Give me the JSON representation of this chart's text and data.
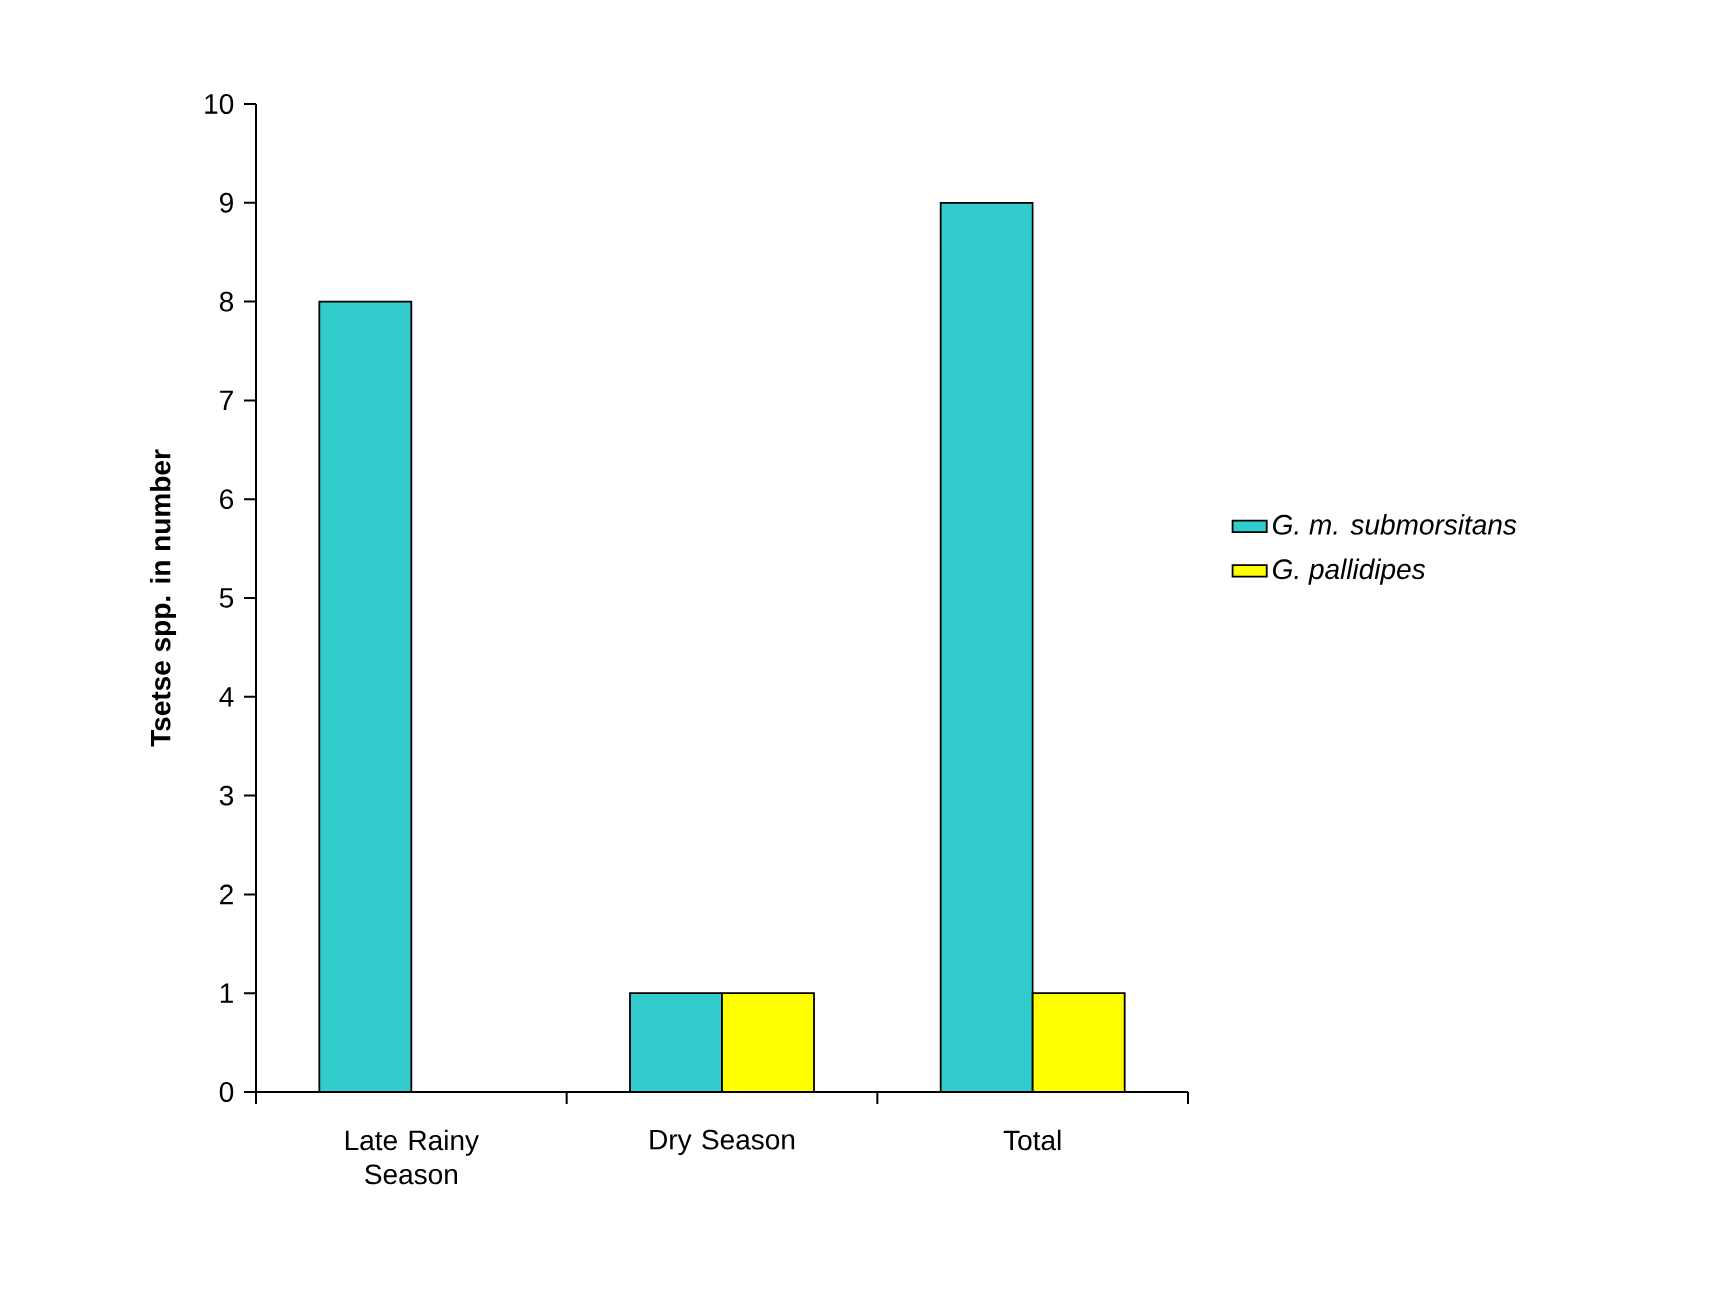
{
  "chart_data": {
    "type": "bar",
    "ylabel": "Tsetse spp. in number",
    "categories": [
      "Late Rainy Season",
      "Dry Season",
      "Total"
    ],
    "series": [
      {
        "name": "G. m. submorsitans",
        "color": "#33cccc",
        "values": [
          8,
          1,
          9
        ]
      },
      {
        "name": "G. pallidipes",
        "color": "#ffff00",
        "values": [
          null,
          1,
          1
        ]
      }
    ],
    "ylim": [
      0,
      10
    ],
    "yticks": [
      0,
      1,
      2,
      3,
      4,
      5,
      6,
      7,
      8,
      9,
      10
    ],
    "grid": false,
    "legend": "right"
  }
}
